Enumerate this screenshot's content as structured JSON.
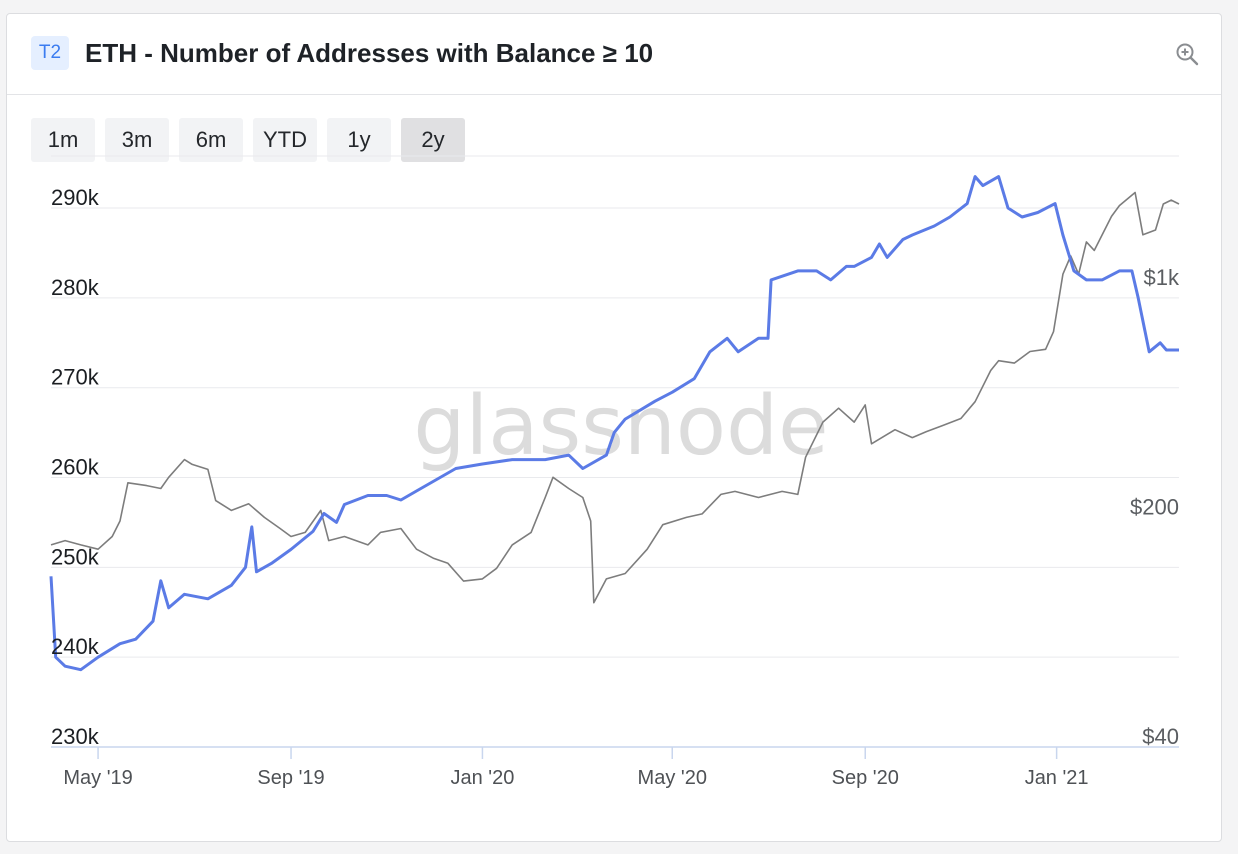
{
  "card": {
    "tier_badge": "T2",
    "title": "ETH - Number of Addresses with Balance ≥ 10",
    "zoom_icon": "zoom-in-icon"
  },
  "ranges": [
    {
      "label": "1m",
      "active": false
    },
    {
      "label": "3m",
      "active": false
    },
    {
      "label": "6m",
      "active": false
    },
    {
      "label": "YTD",
      "active": false
    },
    {
      "label": "1y",
      "active": false
    },
    {
      "label": "2y",
      "active": true
    }
  ],
  "watermark": "glassnode",
  "colors": {
    "addresses_line": "#5b7be6",
    "price_line": "#7d7d7d",
    "grid": "#e9eaed",
    "axis": "#c9d6ee"
  },
  "chart_data": {
    "type": "line",
    "x_range": [
      "2019-04-01",
      "2021-03-20"
    ],
    "x_ticks": [
      {
        "date": "2019-05-01",
        "label": "May '19"
      },
      {
        "date": "2019-09-01",
        "label": "Sep '19"
      },
      {
        "date": "2020-01-01",
        "label": "Jan '20"
      },
      {
        "date": "2020-05-01",
        "label": "May '20"
      },
      {
        "date": "2020-09-01",
        "label": "Sep '20"
      },
      {
        "date": "2021-01-01",
        "label": "Jan '21"
      }
    ],
    "y_left": {
      "range": [
        230000,
        290000
      ],
      "ticks": [
        {
          "value": 230000,
          "label": "230k"
        },
        {
          "value": 240000,
          "label": "240k"
        },
        {
          "value": 250000,
          "label": "250k"
        },
        {
          "value": 260000,
          "label": "260k"
        },
        {
          "value": 270000,
          "label": "270k"
        },
        {
          "value": 280000,
          "label": "280k"
        },
        {
          "value": 290000,
          "label": "290k"
        }
      ]
    },
    "y_right": {
      "scale": "log",
      "range": [
        40,
        2300
      ],
      "ticks": [
        {
          "value": 40,
          "label": "$40"
        },
        {
          "value": 200,
          "label": "$200"
        },
        {
          "value": 1000,
          "label": "$1k"
        }
      ]
    },
    "grid": true,
    "legend": "none",
    "series": [
      {
        "axis": "left",
        "color": "#5b7be6",
        "points": [
          [
            "2019-04-01",
            249000
          ],
          [
            "2019-04-04",
            240000
          ],
          [
            "2019-04-10",
            239000
          ],
          [
            "2019-04-20",
            238600
          ],
          [
            "2019-05-01",
            240000
          ],
          [
            "2019-05-15",
            241500
          ],
          [
            "2019-05-25",
            242000
          ],
          [
            "2019-06-05",
            244000
          ],
          [
            "2019-06-10",
            248500
          ],
          [
            "2019-06-15",
            245500
          ],
          [
            "2019-06-25",
            247000
          ],
          [
            "2019-07-10",
            246500
          ],
          [
            "2019-07-25",
            248000
          ],
          [
            "2019-08-03",
            250000
          ],
          [
            "2019-08-07",
            254500
          ],
          [
            "2019-08-10",
            249500
          ],
          [
            "2019-08-20",
            250500
          ],
          [
            "2019-09-01",
            252000
          ],
          [
            "2019-09-15",
            254000
          ],
          [
            "2019-09-22",
            256000
          ],
          [
            "2019-09-30",
            255000
          ],
          [
            "2019-10-05",
            257000
          ],
          [
            "2019-10-20",
            258000
          ],
          [
            "2019-11-01",
            258000
          ],
          [
            "2019-11-10",
            257500
          ],
          [
            "2019-11-20",
            258500
          ],
          [
            "2019-12-05",
            260000
          ],
          [
            "2019-12-15",
            261000
          ],
          [
            "2020-01-01",
            261500
          ],
          [
            "2020-01-20",
            262000
          ],
          [
            "2020-02-10",
            262000
          ],
          [
            "2020-02-25",
            262500
          ],
          [
            "2020-03-05",
            261000
          ],
          [
            "2020-03-20",
            262500
          ],
          [
            "2020-03-25",
            265000
          ],
          [
            "2020-04-01",
            266500
          ],
          [
            "2020-04-20",
            268500
          ],
          [
            "2020-05-01",
            269500
          ],
          [
            "2020-05-15",
            271000
          ],
          [
            "2020-05-25",
            274000
          ],
          [
            "2020-06-05",
            275500
          ],
          [
            "2020-06-12",
            274000
          ],
          [
            "2020-06-25",
            275500
          ],
          [
            "2020-07-01",
            275500
          ],
          [
            "2020-07-03",
            282000
          ],
          [
            "2020-07-20",
            283000
          ],
          [
            "2020-08-01",
            283000
          ],
          [
            "2020-08-10",
            282000
          ],
          [
            "2020-08-20",
            283500
          ],
          [
            "2020-08-25",
            283500
          ],
          [
            "2020-09-05",
            284500
          ],
          [
            "2020-09-10",
            286000
          ],
          [
            "2020-09-15",
            284500
          ],
          [
            "2020-09-25",
            286500
          ],
          [
            "2020-10-01",
            287000
          ],
          [
            "2020-10-15",
            288000
          ],
          [
            "2020-10-25",
            289000
          ],
          [
            "2020-11-05",
            290500
          ],
          [
            "2020-11-10",
            293500
          ],
          [
            "2020-11-15",
            292500
          ],
          [
            "2020-11-25",
            293500
          ],
          [
            "2020-12-01",
            290000
          ],
          [
            "2020-12-10",
            289000
          ],
          [
            "2020-12-20",
            289500
          ],
          [
            "2020-12-31",
            290500
          ],
          [
            "2021-01-05",
            287000
          ],
          [
            "2021-01-12",
            283000
          ],
          [
            "2021-01-20",
            282000
          ],
          [
            "2021-01-30",
            282000
          ],
          [
            "2021-02-10",
            283000
          ],
          [
            "2021-02-18",
            283000
          ],
          [
            "2021-02-22",
            280000
          ],
          [
            "2021-03-01",
            274000
          ],
          [
            "2021-03-08",
            275000
          ],
          [
            "2021-03-12",
            274200
          ],
          [
            "2021-03-20",
            274200
          ]
        ]
      },
      {
        "axis": "right",
        "color": "#7d7d7d",
        "points": [
          [
            "2019-04-01",
            165
          ],
          [
            "2019-04-10",
            170
          ],
          [
            "2019-04-20",
            165
          ],
          [
            "2019-05-01",
            160
          ],
          [
            "2019-05-10",
            175
          ],
          [
            "2019-05-15",
            195
          ],
          [
            "2019-05-20",
            255
          ],
          [
            "2019-06-01",
            250
          ],
          [
            "2019-06-10",
            245
          ],
          [
            "2019-06-15",
            265
          ],
          [
            "2019-06-25",
            300
          ],
          [
            "2019-06-30",
            290
          ],
          [
            "2019-07-10",
            280
          ],
          [
            "2019-07-15",
            225
          ],
          [
            "2019-07-25",
            210
          ],
          [
            "2019-08-05",
            220
          ],
          [
            "2019-08-15",
            200
          ],
          [
            "2019-08-25",
            185
          ],
          [
            "2019-09-01",
            175
          ],
          [
            "2019-09-10",
            180
          ],
          [
            "2019-09-20",
            210
          ],
          [
            "2019-09-25",
            170
          ],
          [
            "2019-10-05",
            175
          ],
          [
            "2019-10-20",
            165
          ],
          [
            "2019-10-28",
            180
          ],
          [
            "2019-11-10",
            185
          ],
          [
            "2019-11-20",
            160
          ],
          [
            "2019-12-01",
            150
          ],
          [
            "2019-12-10",
            145
          ],
          [
            "2019-12-20",
            128
          ],
          [
            "2020-01-01",
            130
          ],
          [
            "2020-01-10",
            140
          ],
          [
            "2020-01-20",
            165
          ],
          [
            "2020-02-01",
            180
          ],
          [
            "2020-02-10",
            230
          ],
          [
            "2020-02-15",
            265
          ],
          [
            "2020-02-25",
            245
          ],
          [
            "2020-03-05",
            230
          ],
          [
            "2020-03-10",
            195
          ],
          [
            "2020-03-12",
            110
          ],
          [
            "2020-03-20",
            130
          ],
          [
            "2020-04-01",
            135
          ],
          [
            "2020-04-15",
            160
          ],
          [
            "2020-04-25",
            190
          ],
          [
            "2020-05-10",
            200
          ],
          [
            "2020-05-20",
            205
          ],
          [
            "2020-06-01",
            235
          ],
          [
            "2020-06-10",
            240
          ],
          [
            "2020-06-25",
            230
          ],
          [
            "2020-07-10",
            240
          ],
          [
            "2020-07-20",
            235
          ],
          [
            "2020-07-25",
            305
          ],
          [
            "2020-08-05",
            390
          ],
          [
            "2020-08-15",
            430
          ],
          [
            "2020-08-25",
            390
          ],
          [
            "2020-09-01",
            440
          ],
          [
            "2020-09-05",
            335
          ],
          [
            "2020-09-20",
            370
          ],
          [
            "2020-10-01",
            350
          ],
          [
            "2020-10-10",
            365
          ],
          [
            "2020-10-20",
            380
          ],
          [
            "2020-11-01",
            400
          ],
          [
            "2020-11-10",
            450
          ],
          [
            "2020-11-20",
            560
          ],
          [
            "2020-11-25",
            600
          ],
          [
            "2020-12-05",
            590
          ],
          [
            "2020-12-15",
            640
          ],
          [
            "2020-12-25",
            650
          ],
          [
            "2020-12-30",
            735
          ],
          [
            "2021-01-05",
            1100
          ],
          [
            "2021-01-10",
            1250
          ],
          [
            "2021-01-15",
            1100
          ],
          [
            "2021-01-20",
            1380
          ],
          [
            "2021-01-25",
            1300
          ],
          [
            "2021-02-05",
            1650
          ],
          [
            "2021-02-10",
            1780
          ],
          [
            "2021-02-20",
            1950
          ],
          [
            "2021-02-25",
            1450
          ],
          [
            "2021-03-05",
            1500
          ],
          [
            "2021-03-10",
            1800
          ],
          [
            "2021-03-15",
            1850
          ],
          [
            "2021-03-20",
            1800
          ]
        ]
      }
    ]
  }
}
